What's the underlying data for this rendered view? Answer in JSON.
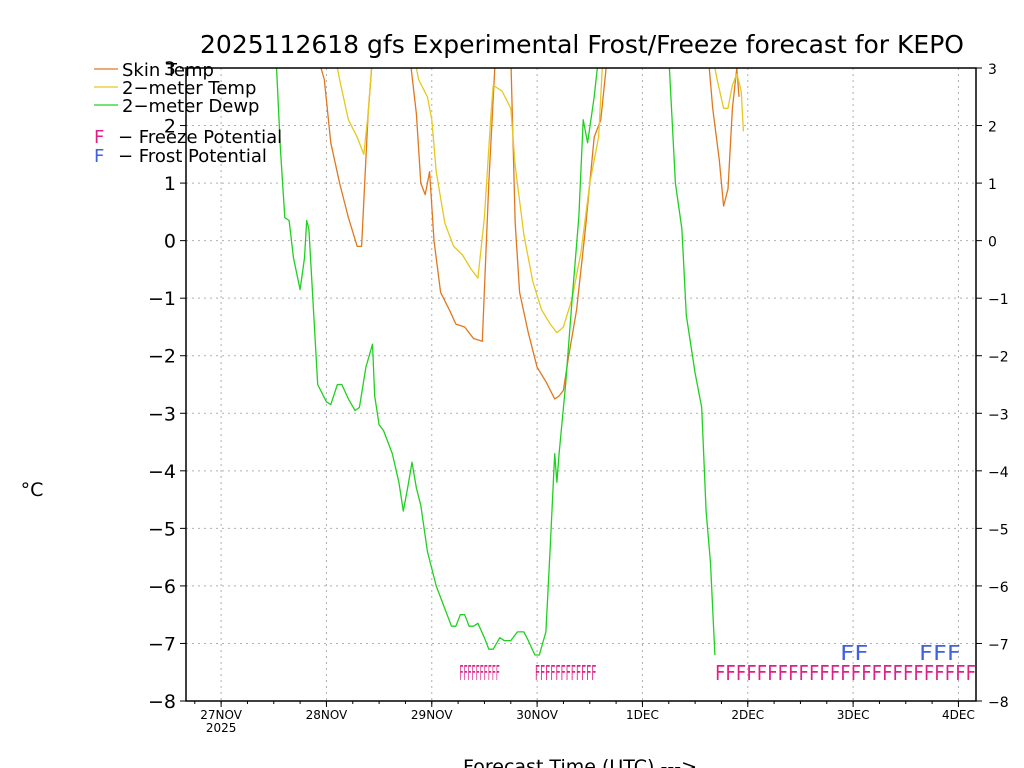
{
  "chart_data": {
    "type": "line",
    "title": "2025112618 gfs Experimental Frost/Freeze forecast for KEPO",
    "ylabel": "°C",
    "xlabel": "Forecast Time (UTC) --->",
    "ylim": [
      -8,
      3
    ],
    "yticks": [
      -8,
      -7,
      -6,
      -5,
      -4,
      -3,
      -2,
      -1,
      0,
      1,
      2,
      3
    ],
    "ytick_labels": [
      "−8",
      "−7",
      "−6",
      "−5",
      "−4",
      "−3",
      "−2",
      "−1",
      "0",
      "1",
      "2",
      "3"
    ],
    "xlim_hours": [
      -2,
      178
    ],
    "xticks": [
      {
        "hour": 6,
        "label": "27NOV",
        "sub": "2025"
      },
      {
        "hour": 30,
        "label": "28NOV"
      },
      {
        "hour": 54,
        "label": "29NOV"
      },
      {
        "hour": 78,
        "label": "30NOV"
      },
      {
        "hour": 102,
        "label": "1DEC"
      },
      {
        "hour": 126,
        "label": "2DEC"
      },
      {
        "hour": 150,
        "label": "3DEC"
      },
      {
        "hour": 174,
        "label": "4DEC"
      }
    ],
    "x_unit": "hours after 2025-11-26 18Z",
    "series": [
      {
        "name": "Skin Temp",
        "legend_label": "Skin Temp",
        "color": "#e07820",
        "points": [
          [
            28,
            3.2
          ],
          [
            29.5,
            2.8
          ],
          [
            31,
            1.7
          ],
          [
            33,
            1.0
          ],
          [
            35,
            0.4
          ],
          [
            37,
            -0.1
          ],
          [
            38,
            -0.1
          ],
          [
            39.5,
            2.2
          ],
          [
            40.5,
            3.2
          ],
          [
            49,
            3.2
          ],
          [
            50.5,
            2.2
          ],
          [
            51.5,
            1.0
          ],
          [
            52.5,
            0.8
          ],
          [
            53.5,
            1.2
          ],
          [
            54.5,
            0.0
          ],
          [
            56,
            -0.9
          ],
          [
            58,
            -1.2
          ],
          [
            59.5,
            -1.45
          ],
          [
            61.5,
            -1.5
          ],
          [
            63.5,
            -1.7
          ],
          [
            65.5,
            -1.75
          ],
          [
            67,
            1.0
          ],
          [
            68.5,
            3.2
          ],
          [
            72,
            3.2
          ],
          [
            73,
            0.3
          ],
          [
            74,
            -0.9
          ],
          [
            76,
            -1.6
          ],
          [
            78,
            -2.2
          ],
          [
            80,
            -2.45
          ],
          [
            82,
            -2.75
          ],
          [
            83,
            -2.7
          ],
          [
            84,
            -2.6
          ],
          [
            85,
            -2.1
          ],
          [
            87,
            -1.2
          ],
          [
            89,
            0.2
          ],
          [
            91,
            1.8
          ],
          [
            92.5,
            2.1
          ],
          [
            94,
            3.2
          ],
          [
            117,
            3.2
          ],
          [
            118,
            2.3
          ],
          [
            119.5,
            1.4
          ],
          [
            120.5,
            0.6
          ],
          [
            121.5,
            0.9
          ],
          [
            122.5,
            2.3
          ],
          [
            123.5,
            3.0
          ],
          [
            124,
            2.5
          ]
        ]
      },
      {
        "name": "2-meter Temp",
        "legend_label": "2−meter Temp",
        "color": "#e6c820",
        "points": [
          [
            32,
            3.2
          ],
          [
            33,
            2.8
          ],
          [
            35,
            2.1
          ],
          [
            37,
            1.8
          ],
          [
            38.5,
            1.5
          ],
          [
            39.5,
            2.2
          ],
          [
            40.5,
            3.2
          ],
          [
            50,
            3.2
          ],
          [
            51,
            2.8
          ],
          [
            53,
            2.5
          ],
          [
            54,
            2.1
          ],
          [
            55,
            1.2
          ],
          [
            57,
            0.3
          ],
          [
            59,
            -0.1
          ],
          [
            61,
            -0.25
          ],
          [
            63,
            -0.5
          ],
          [
            64.5,
            -0.65
          ],
          [
            66,
            0.4
          ],
          [
            67.5,
            2.2
          ],
          [
            68,
            2.7
          ],
          [
            70,
            2.6
          ],
          [
            72,
            2.3
          ],
          [
            73,
            1.3
          ],
          [
            75,
            0.1
          ],
          [
            77,
            -0.7
          ],
          [
            79,
            -1.2
          ],
          [
            81,
            -1.45
          ],
          [
            82.5,
            -1.6
          ],
          [
            84,
            -1.5
          ],
          [
            86,
            -1.0
          ],
          [
            88,
            -0.2
          ],
          [
            90,
            1.0
          ],
          [
            92,
            1.8
          ],
          [
            93,
            3.2
          ],
          [
            118,
            3.2
          ],
          [
            119,
            2.8
          ],
          [
            120.5,
            2.3
          ],
          [
            121.5,
            2.3
          ],
          [
            122.5,
            2.7
          ],
          [
            123.5,
            2.9
          ],
          [
            124.5,
            2.6
          ],
          [
            125,
            1.9
          ]
        ]
      },
      {
        "name": "2-meter Dewp",
        "legend_label": "2−meter Dewp",
        "color": "#20d020",
        "points": [
          [
            18.5,
            3.2
          ],
          [
            19.5,
            1.6
          ],
          [
            20.5,
            0.4
          ],
          [
            21.5,
            0.35
          ],
          [
            22.5,
            -0.3
          ],
          [
            24,
            -0.85
          ],
          [
            25,
            -0.3
          ],
          [
            25.5,
            0.35
          ],
          [
            26,
            0.2
          ],
          [
            28,
            -2.5
          ],
          [
            30,
            -2.8
          ],
          [
            31,
            -2.85
          ],
          [
            32.5,
            -2.5
          ],
          [
            33.5,
            -2.5
          ],
          [
            35,
            -2.75
          ],
          [
            36.5,
            -2.95
          ],
          [
            37.5,
            -2.9
          ],
          [
            39,
            -2.2
          ],
          [
            40.5,
            -1.8
          ],
          [
            41,
            -2.7
          ],
          [
            42,
            -3.2
          ],
          [
            43,
            -3.3
          ],
          [
            45,
            -3.7
          ],
          [
            46.5,
            -4.2
          ],
          [
            47.5,
            -4.7
          ],
          [
            48.5,
            -4.3
          ],
          [
            49.5,
            -3.85
          ],
          [
            50.5,
            -4.3
          ],
          [
            51.5,
            -4.6
          ],
          [
            53,
            -5.4
          ],
          [
            55,
            -6.0
          ],
          [
            57,
            -6.4
          ],
          [
            58.5,
            -6.7
          ],
          [
            59.5,
            -6.7
          ],
          [
            60.5,
            -6.5
          ],
          [
            61.5,
            -6.5
          ],
          [
            62.5,
            -6.7
          ],
          [
            63.5,
            -6.7
          ],
          [
            64.5,
            -6.65
          ],
          [
            66,
            -6.9
          ],
          [
            67,
            -7.1
          ],
          [
            68,
            -7.1
          ],
          [
            69.5,
            -6.9
          ],
          [
            70.5,
            -6.95
          ],
          [
            72,
            -6.95
          ],
          [
            73.5,
            -6.8
          ],
          [
            75,
            -6.8
          ],
          [
            76,
            -6.95
          ],
          [
            77.5,
            -7.2
          ],
          [
            78.5,
            -7.2
          ],
          [
            80,
            -6.8
          ],
          [
            81,
            -5.3
          ],
          [
            82,
            -3.7
          ],
          [
            82.5,
            -4.2
          ],
          [
            83,
            -3.7
          ],
          [
            84.5,
            -2.5
          ],
          [
            86,
            -1.0
          ],
          [
            87.5,
            0.4
          ],
          [
            88.5,
            2.1
          ],
          [
            89.5,
            1.7
          ],
          [
            91,
            2.5
          ],
          [
            92,
            3.2
          ],
          [
            108,
            3.2
          ],
          [
            109.5,
            1.0
          ],
          [
            111,
            0.2
          ],
          [
            112,
            -1.3
          ],
          [
            114,
            -2.3
          ],
          [
            115.5,
            -2.9
          ],
          [
            116.5,
            -4.7
          ],
          [
            117.5,
            -5.6
          ],
          [
            118.5,
            -7.2
          ]
        ]
      }
    ],
    "legend": {
      "position": "top-left",
      "annotations": [
        {
          "prefix": "F",
          "text": "− Freeze Potential",
          "color": "#e0208a"
        },
        {
          "prefix": "F",
          "text": "− Frost Potential",
          "color": "#4060e0"
        }
      ]
    },
    "flags": [
      {
        "type": "freeze",
        "text": "FFFFFFFFFF",
        "start_hour": 60.3,
        "end_hour": 69.5,
        "y": -7.5,
        "color": "#e0208a"
      },
      {
        "type": "freeze",
        "text": "FFFFFFFFFFFF",
        "start_hour": 77.5,
        "end_hour": 91.5,
        "y": -7.5,
        "color": "#e0208a"
      },
      {
        "type": "freeze",
        "text": "FFFFFFFFFFFFFFFFFFFFFFFFF",
        "start_hour": 118.5,
        "end_hour": 178,
        "y": -7.5,
        "color": "#e0208a"
      },
      {
        "type": "frost",
        "text": "FF",
        "start_hour": 147,
        "end_hour": 153.5,
        "y": -7.15,
        "color": "#4060e0"
      },
      {
        "type": "frost",
        "text": "FFF",
        "start_hour": 165,
        "end_hour": 174.5,
        "y": -7.15,
        "color": "#4060e0"
      }
    ]
  }
}
